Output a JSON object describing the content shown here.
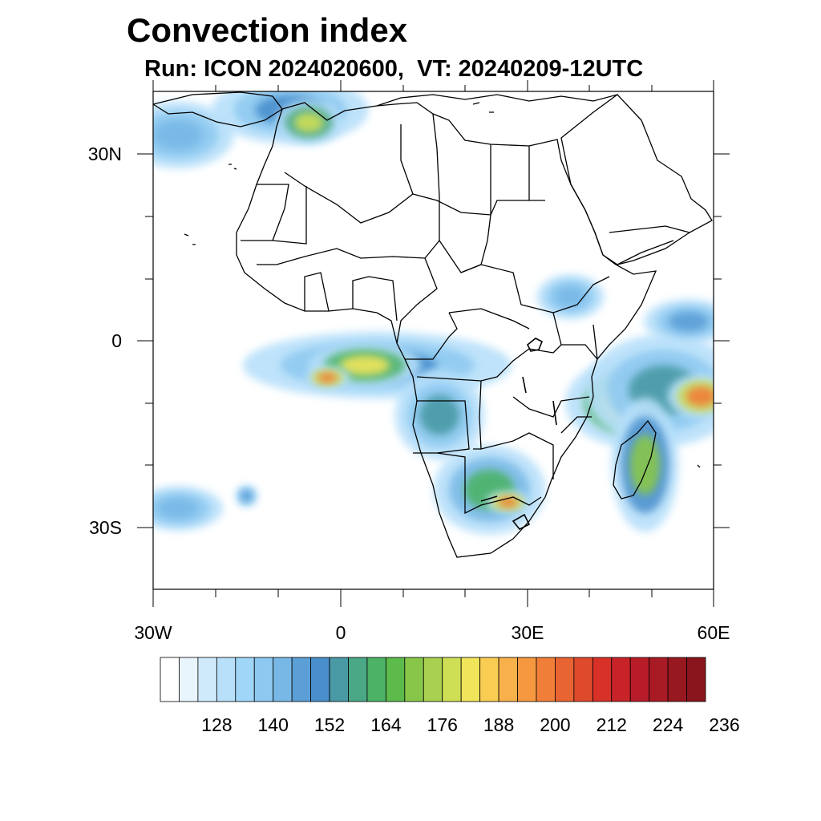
{
  "title": "Convection index",
  "subtitle": "Run: ICON 2024020600,  VT: 20240209-12UTC",
  "lat_labels": [
    "30N",
    "0",
    "30S"
  ],
  "lon_labels": [
    "30W",
    "0",
    "30E",
    "60E"
  ],
  "colorbar": {
    "labels": [
      "128",
      "140",
      "152",
      "164",
      "176",
      "188",
      "200",
      "212",
      "224",
      "236"
    ],
    "colors": [
      "#ffffff",
      "#e8f5fd",
      "#cfeafb",
      "#b8e0fa",
      "#a0d6f7",
      "#8cc8f0",
      "#78b8e6",
      "#5c9fd6",
      "#4a8fcc",
      "#4a9aa6",
      "#4aa886",
      "#4cb266",
      "#5cbb4a",
      "#88c64a",
      "#aad050",
      "#cede55",
      "#f0e45a",
      "#f8cd52",
      "#f8b14a",
      "#f59840",
      "#f07e38",
      "#e86432",
      "#e04a2c",
      "#d83228",
      "#c82328",
      "#b81c28",
      "#a81a24",
      "#981820",
      "#88161c"
    ]
  },
  "map": {
    "lon_range": [
      -30,
      60
    ],
    "lat_range": [
      -40,
      40
    ],
    "convection_cells": [
      {
        "lon": -8,
        "lat": 37,
        "rx": 7,
        "ry": 3,
        "level": 8
      },
      {
        "lon": -5,
        "lat": 35,
        "rx": 3,
        "ry": 2,
        "level": 15
      },
      {
        "lon": -26,
        "lat": 33,
        "rx": 5,
        "ry": 3,
        "level": 6
      },
      {
        "lon": 6,
        "lat": -4,
        "rx": 12,
        "ry": 3,
        "level": 8
      },
      {
        "lon": 4,
        "lat": -4,
        "rx": 5,
        "ry": 2,
        "level": 16
      },
      {
        "lon": -2,
        "lat": -6,
        "rx": 2,
        "ry": 1,
        "level": 20
      },
      {
        "lon": 16,
        "lat": -12,
        "rx": 4,
        "ry": 4,
        "level": 9
      },
      {
        "lon": 24,
        "lat": -24,
        "rx": 5,
        "ry": 4,
        "level": 11
      },
      {
        "lon": 27,
        "lat": -26,
        "rx": 2,
        "ry": 1,
        "level": 20
      },
      {
        "lon": 47,
        "lat": -10,
        "rx": 6,
        "ry": 4,
        "level": 16
      },
      {
        "lon": 52,
        "lat": -8,
        "rx": 7,
        "ry": 5,
        "level": 9
      },
      {
        "lon": 49,
        "lat": -20,
        "rx": 3,
        "ry": 6,
        "level": 13
      },
      {
        "lon": 58,
        "lat": -9,
        "rx": 3,
        "ry": 2,
        "level": 20
      },
      {
        "lon": 37,
        "lat": 7,
        "rx": 3,
        "ry": 2,
        "level": 6
      },
      {
        "lon": 56,
        "lat": 3,
        "rx": 4,
        "ry": 2,
        "level": 7
      },
      {
        "lon": -15,
        "lat": -25,
        "rx": 1,
        "ry": 1,
        "level": 8
      },
      {
        "lon": -26,
        "lat": -27,
        "rx": 4,
        "ry": 2,
        "level": 6
      }
    ]
  }
}
